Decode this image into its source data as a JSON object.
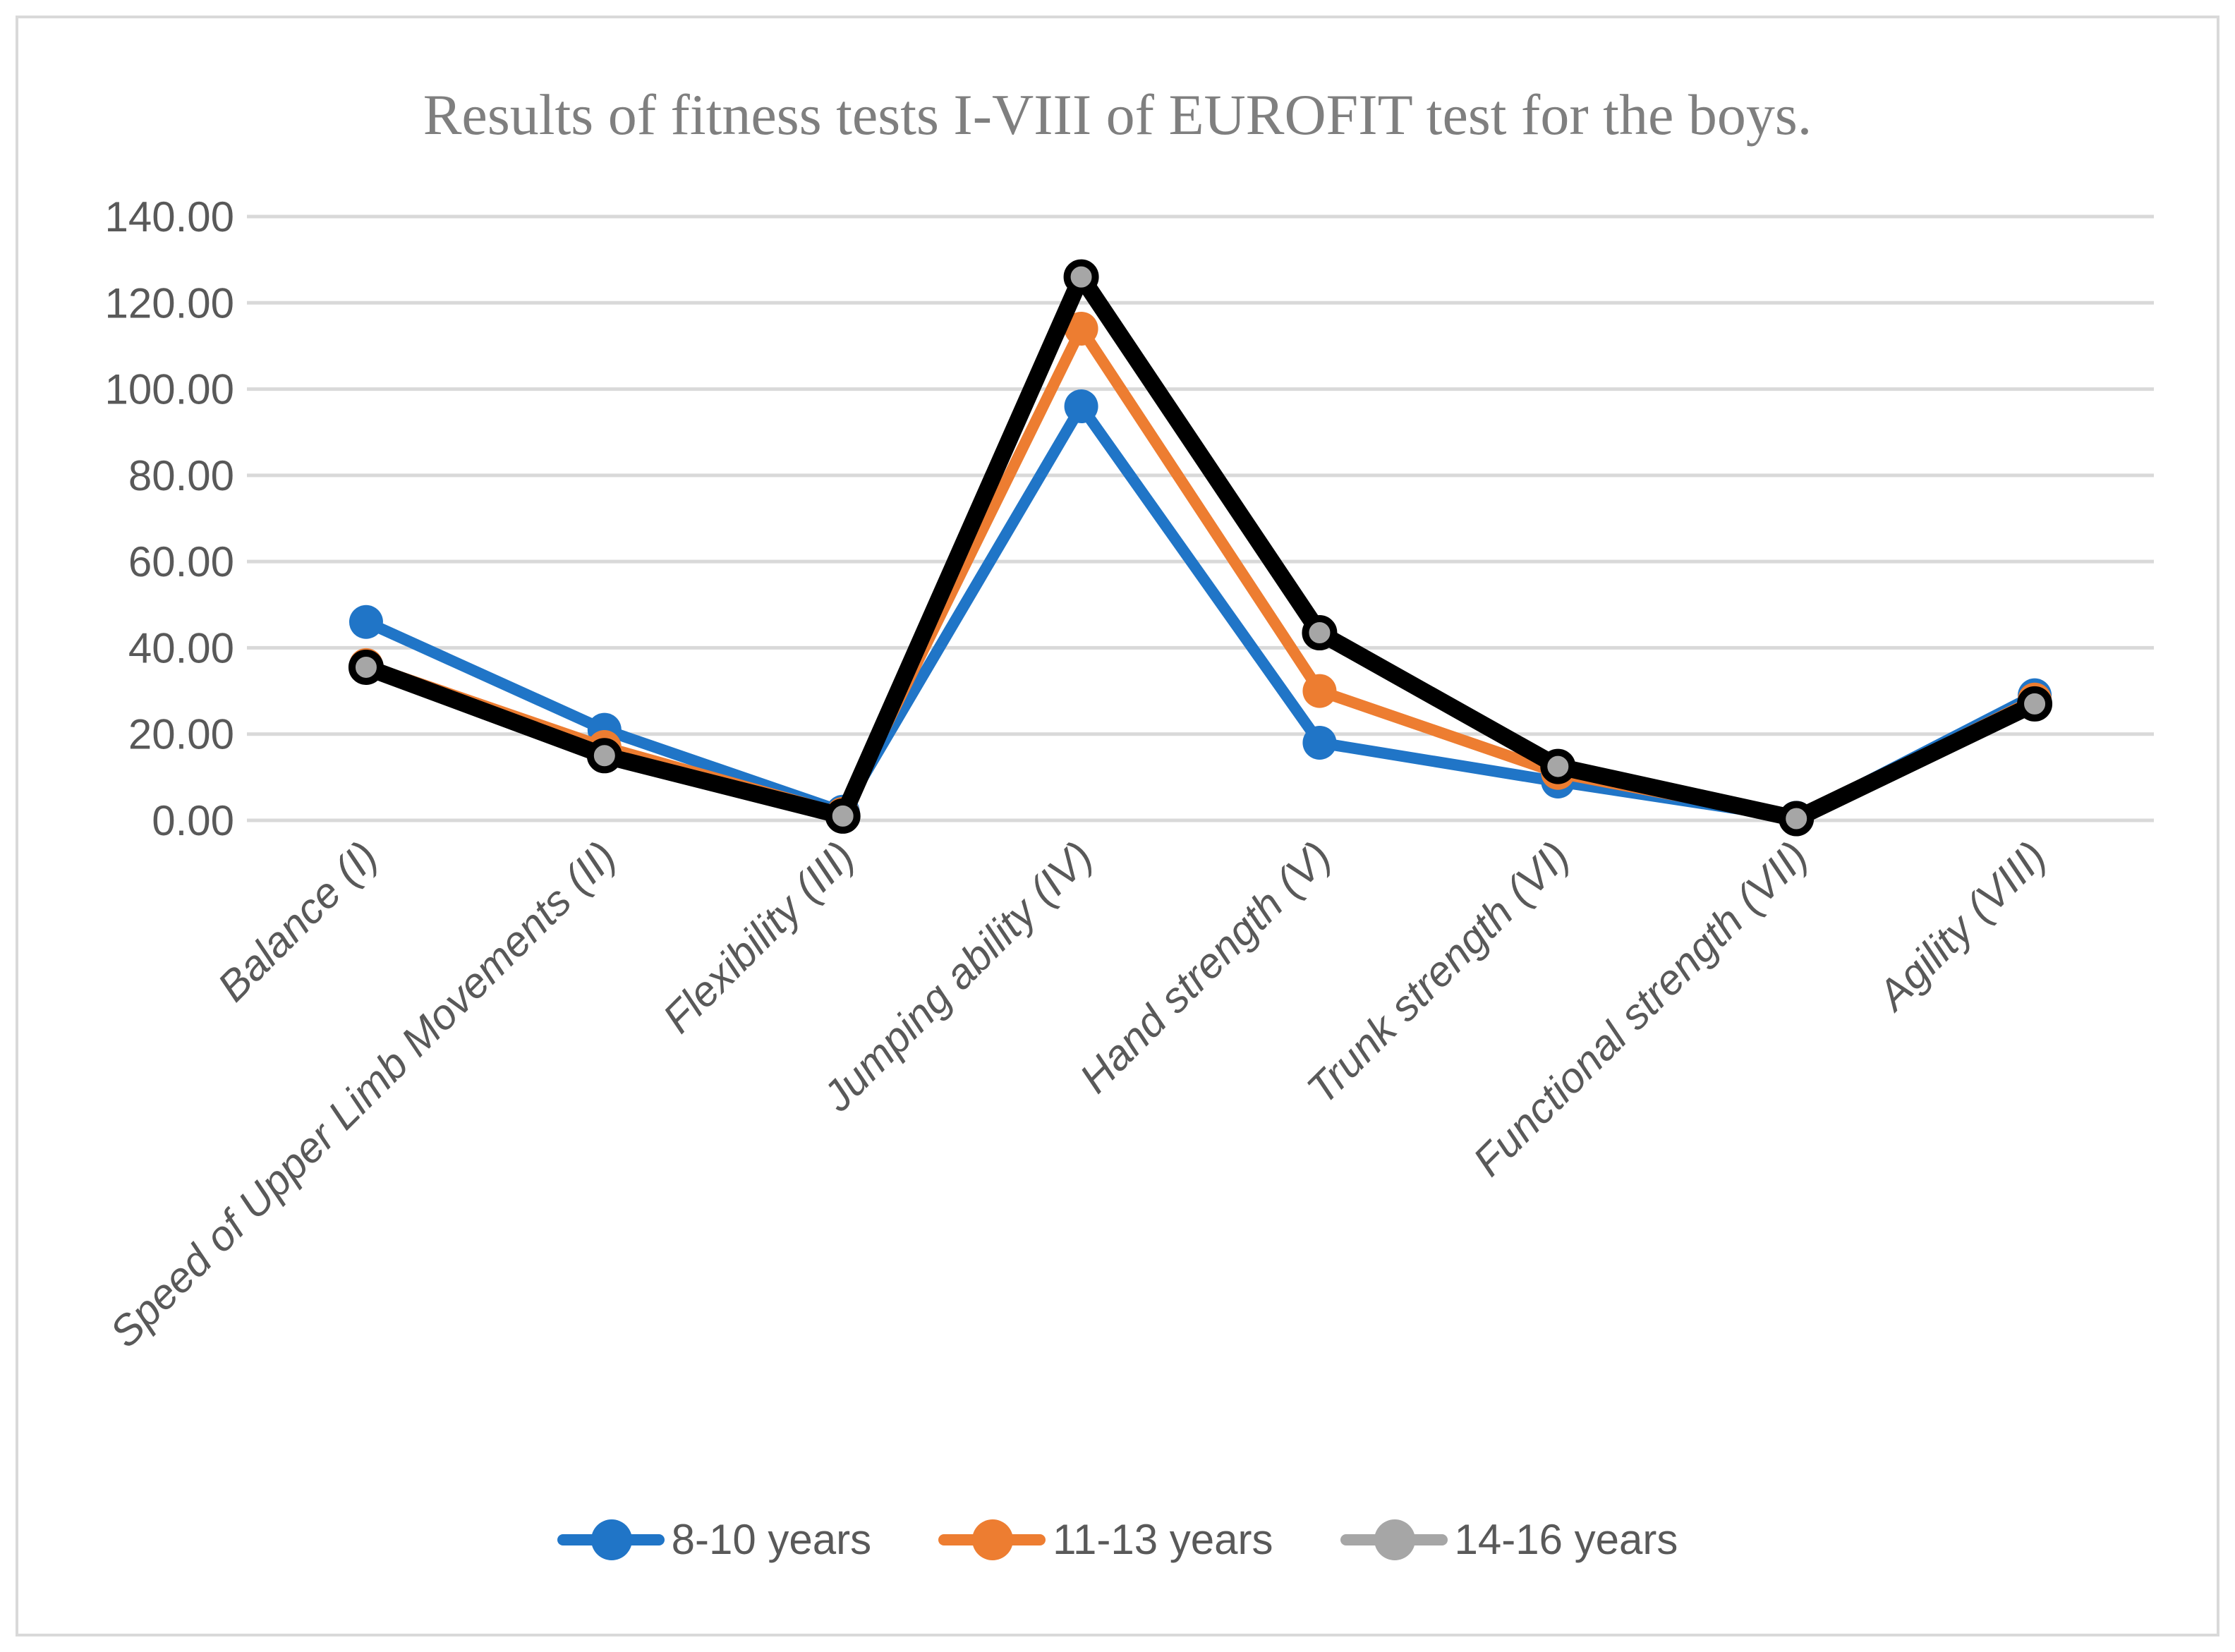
{
  "chart_data": {
    "type": "line",
    "title": "Results of fitness tests I-VIII of EUROFIT test for the boys.",
    "categories": [
      "Balance (I)",
      "Speed of Upper Limb Movements (II)",
      "Flexibility (III)",
      "Jumping ability (IV)",
      "Hand strength (V)",
      "Trunk strength (VI)",
      "Functional strength (VII)",
      "Agility (VIII)"
    ],
    "series": [
      {
        "name": "8-10 years",
        "color": "#2075C7",
        "marker_fill": "#2075C7",
        "line_width": 16,
        "marker_radius": 24,
        "values": [
          46,
          21,
          2,
          96,
          18,
          9,
          0.6,
          29
        ]
      },
      {
        "name": "11-13 years",
        "color": "#ED7D31",
        "marker_fill": "#ED7D31",
        "line_width": 16,
        "marker_radius": 24,
        "values": [
          36,
          17,
          1.5,
          114,
          30,
          11,
          0.5,
          28
        ]
      },
      {
        "name": "14-16 years",
        "color": "#000000",
        "marker_fill": "#A6A6A6",
        "marker_stroke": "#000000",
        "legend_color": "#A6A6A6",
        "line_width": 24,
        "marker_radius": 20,
        "values": [
          35.5,
          15,
          1,
          126,
          43.5,
          12.5,
          0.4,
          27
        ]
      }
    ],
    "y_ticks": [
      "0.00",
      "20.00",
      "40.00",
      "60.00",
      "80.00",
      "100.00",
      "120.00",
      "140.00"
    ],
    "ylim": [
      0,
      140
    ],
    "y_step": 20,
    "grid": true,
    "legend_position": "bottom"
  },
  "colors": {
    "gridline": "#D9D9D9",
    "border": "#D9D9D9",
    "axis_text": "#595959",
    "title_text": "#7F7F7F",
    "background": "#FFFFFF"
  }
}
